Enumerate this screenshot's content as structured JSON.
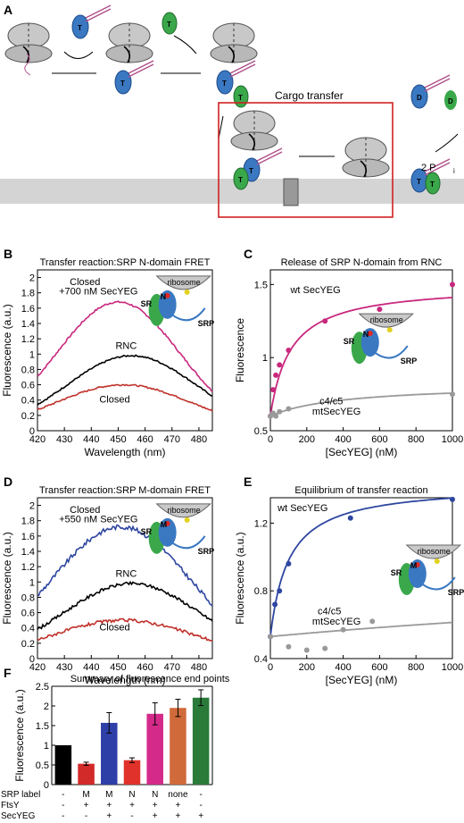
{
  "panel_letters": [
    "A",
    "B",
    "C",
    "D",
    "E",
    "F"
  ],
  "schematic": {
    "cargo_transfer_label": "Cargo transfer",
    "pi_label": "2 P",
    "pi_sub": "i",
    "t_label": "T",
    "d_label": "D",
    "colors": {
      "srp": "#3a78c2",
      "sr": "#3aa84a",
      "ribosome": "#c8c8c8",
      "membrane": "#d4d4d4",
      "box": "#d22020",
      "rna": "#b0508a"
    }
  },
  "chart_data": [
    {
      "panel": "B",
      "type": "line",
      "title": "Transfer reaction:SRP N-domain FRET",
      "xlabel": "Wavelength (nm)",
      "ylabel": "Fluorescence (a.u.)",
      "xlim": [
        420,
        485
      ],
      "ylim": [
        0,
        2.1
      ],
      "xticks": [
        420,
        430,
        440,
        450,
        460,
        470,
        480
      ],
      "yticks": [
        0,
        0.2,
        0.4,
        0.6,
        0.8,
        1,
        1.2,
        1.4,
        1.6,
        1.8,
        2
      ],
      "series": [
        {
          "name": "Closed +700 nM SecYEG",
          "color": "#c8287e",
          "peak": 1.68,
          "center": 450,
          "width": 17,
          "base": 0.0,
          "noise": 0.012
        },
        {
          "name": "RNC",
          "color": "#000000",
          "peak": 0.98,
          "center": 455,
          "width": 18,
          "base": 0.0,
          "noise": 0.01
        },
        {
          "name": "Closed",
          "color": "#c0312a",
          "peak": 0.6,
          "center": 452,
          "width": 19,
          "base": 0.0,
          "noise": 0.01
        }
      ],
      "labels": {
        "s1_line1": "Closed",
        "s1_line2": "+700 nM SecYEG",
        "s2": "RNC",
        "s3": "Closed"
      },
      "inset": {
        "ribosome": "ribosome",
        "sr": "SR",
        "srp": "SRP",
        "domain": "N"
      }
    },
    {
      "panel": "C",
      "type": "scatter",
      "title": "Release of SRP N-domain from RNC",
      "xlabel": "[SecYEG] (nM)",
      "ylabel": "Fluorescence",
      "xlim": [
        0,
        1000
      ],
      "ylim": [
        0.5,
        1.6
      ],
      "xticks": [
        0,
        200,
        400,
        600,
        800,
        1000
      ],
      "yticks": [
        0.5,
        1,
        1.5
      ],
      "series": [
        {
          "name": "wt SecYEG",
          "color": "#c8287e",
          "x": [
            0,
            15,
            30,
            50,
            100,
            300,
            600,
            1000
          ],
          "y": [
            0.6,
            0.78,
            0.88,
            0.95,
            1.05,
            1.25,
            1.33,
            1.5
          ],
          "fit": {
            "y0": 0.6,
            "amp": 0.9,
            "kd": 110
          }
        },
        {
          "name": "c4/c5 mtSecYEG",
          "color": "#999999",
          "x": [
            0,
            15,
            30,
            50,
            100,
            1000
          ],
          "y": [
            0.6,
            0.62,
            0.6,
            0.63,
            0.65,
            0.75
          ],
          "fit": {
            "y0": 0.6,
            "amp": 0.22,
            "kd": 400
          }
        }
      ],
      "labels": {
        "s1": "wt SecYEG",
        "s2_line1": "c4/c5",
        "s2_line2": "mtSecYEG"
      },
      "inset": {
        "ribosome": "ribosome",
        "sr": "SR",
        "srp": "SRP",
        "domain": "N"
      }
    },
    {
      "panel": "D",
      "type": "line",
      "title": "Transfer reaction:SRP M-domain FRET",
      "xlabel": "Wavelength (nm)",
      "ylabel": "Fluorescence (a.u.)",
      "xlim": [
        420,
        485
      ],
      "ylim": [
        0,
        2.1
      ],
      "xticks": [
        420,
        430,
        440,
        450,
        460,
        470,
        480
      ],
      "yticks": [
        0,
        0.2,
        0.4,
        0.6,
        0.8,
        1,
        1.2,
        1.4,
        1.6,
        1.8,
        2
      ],
      "series": [
        {
          "name": "Closed +550 nM SecYEG",
          "color": "#2e46a0",
          "peak": 1.72,
          "center": 451,
          "width": 19,
          "base": 0.0,
          "noise": 0.03
        },
        {
          "name": "RNC",
          "color": "#000000",
          "peak": 0.98,
          "center": 455,
          "width": 19,
          "base": 0.0,
          "noise": 0.02
        },
        {
          "name": "Closed",
          "color": "#c0312a",
          "peak": 0.5,
          "center": 452,
          "width": 20,
          "base": 0.0,
          "noise": 0.02
        }
      ],
      "labels": {
        "s1_line1": "Closed",
        "s1_line2": "+550 nM SecYEG",
        "s2": "RNC",
        "s3": "Closed"
      },
      "inset": {
        "ribosome": "ribosome",
        "sr": "SR",
        "srp": "SRP",
        "domain": "M"
      }
    },
    {
      "panel": "E",
      "type": "scatter",
      "title": "Equilibrium of transfer reaction",
      "xlabel": "[SecYEG] (nM)",
      "ylabel": "Fluorescence (a.u.)",
      "xlim": [
        0,
        1000
      ],
      "ylim": [
        0.4,
        1.35
      ],
      "xticks": [
        0,
        200,
        400,
        600,
        800,
        1000
      ],
      "yticks": [
        0.4,
        0.8,
        1.2
      ],
      "series": [
        {
          "name": "wt SecYEG",
          "color": "#2e46a0",
          "x": [
            0,
            25,
            50,
            100,
            440,
            1000
          ],
          "y": [
            0.53,
            0.72,
            0.8,
            0.96,
            1.23,
            1.34
          ],
          "fit": {
            "y0": 0.53,
            "amp": 0.9,
            "kd": 100
          }
        },
        {
          "name": "c4/c5 mtSecYEG",
          "color": "#999999",
          "x": [
            0,
            100,
            200,
            300,
            400,
            560
          ],
          "y": [
            0.53,
            0.47,
            0.45,
            0.46,
            0.57,
            0.62
          ],
          "fit": {
            "y0": 0.53,
            "amp": 0.5,
            "kd": 5000
          }
        }
      ],
      "labels": {
        "s1": "wt SecYEG",
        "s2_line1": "c4/c5",
        "s2_line2": "mtSecYEG"
      },
      "inset": {
        "ribosome": "ribosome",
        "sr": "SR",
        "srp": "SRP",
        "domain": "M"
      }
    },
    {
      "panel": "F",
      "type": "bar",
      "title": "Summary of fluorescence end points",
      "ylabel": "Fluorescence (a.u.)",
      "ylim": [
        0,
        2.5
      ],
      "yticks": [
        0,
        0.5,
        1,
        1.5,
        2,
        2.5
      ],
      "values": [
        1.0,
        0.53,
        1.57,
        0.62,
        1.8,
        1.95,
        2.21
      ],
      "errors": [
        0.0,
        0.04,
        0.26,
        0.06,
        0.28,
        0.22,
        0.2
      ],
      "colors": [
        "#000000",
        "#d22a28",
        "#2e3fa8",
        "#e0322a",
        "#d42a8a",
        "#d06a3a",
        "#2a7a3a"
      ],
      "rows": [
        {
          "label": "SRP label",
          "values": [
            "-",
            "M",
            "M",
            "N",
            "N",
            "none",
            "-"
          ]
        },
        {
          "label": "FtsY",
          "values": [
            "-",
            "+",
            "+",
            "+",
            "+",
            "+",
            "-"
          ]
        },
        {
          "label": "SecYEG",
          "values": [
            "-",
            "-",
            "+",
            "-",
            "+",
            "+",
            "+"
          ]
        }
      ]
    }
  ]
}
